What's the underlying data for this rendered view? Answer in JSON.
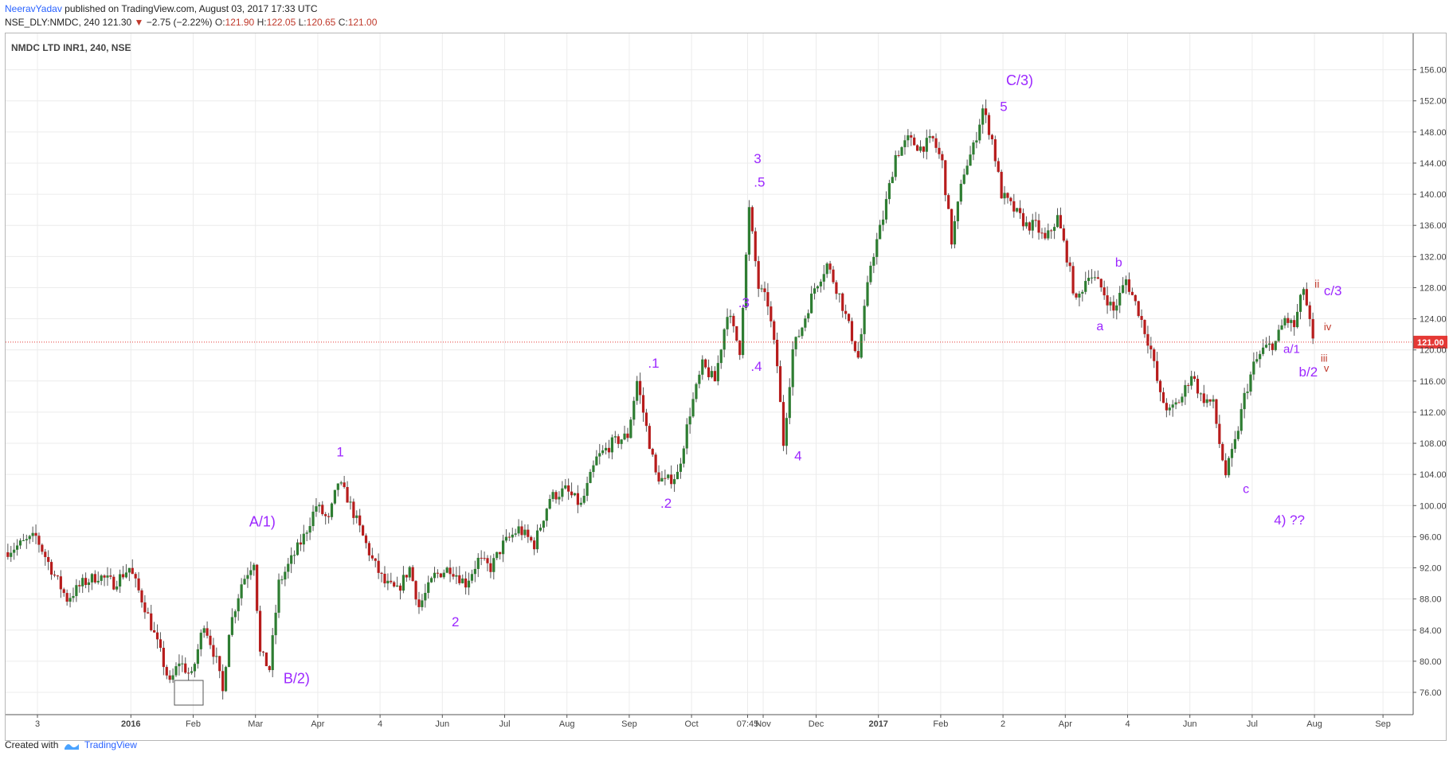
{
  "header": {
    "author": "NeeravYadav",
    "published": "published on TradingView.com, August 03, 2017 17:33 UTC",
    "symbol": "NSE_DLY:NMDC, 240",
    "last": "121.30",
    "arrow": "▼",
    "change": "−2.75 (−2.22%)",
    "o_label": "O:",
    "o": "121.90",
    "h_label": "H:",
    "h": "122.05",
    "l_label": "L:",
    "l": "120.65",
    "c_label": "C:",
    "c": "121.00"
  },
  "footer": {
    "created_with": "Created with",
    "brand": "TradingView"
  },
  "colors": {
    "up": "#2e7d32",
    "down": "#b71c1c",
    "wick": "#555555",
    "wave": "#9c27ff",
    "sub": "#c0392b",
    "price_line": "#e53935"
  },
  "chart_data": {
    "type": "candlestick",
    "title": "NMDC LTD INR1, 240, NSE",
    "ylim": [
      74,
      158
    ],
    "y_ticks": [
      76,
      80,
      84,
      88,
      92,
      96,
      100,
      104,
      108,
      112,
      116,
      120,
      124,
      128,
      132,
      136,
      140,
      144,
      148,
      152,
      156
    ],
    "y_tick_labels": [
      "76.00",
      "80.00",
      "84.00",
      "88.00",
      "92.00",
      "96.00",
      "100.00",
      "104.00",
      "108.00",
      "112.00",
      "116.00",
      "120.00",
      "124.00",
      "128.00",
      "132.00",
      "136.00",
      "140.00",
      "144.00",
      "148.00",
      "152.00",
      "156.00"
    ],
    "x_axis_labels": [
      "3",
      "2016",
      "Feb",
      "Mar",
      "Apr",
      "4",
      "Jun",
      "Jul",
      "Aug",
      "Sep",
      "Oct",
      "07:45",
      "Nov",
      "Dec",
      "2017",
      "Feb",
      "2",
      "Apr",
      "4",
      "Jun",
      "Jul",
      "Aug",
      "Sep"
    ],
    "x_axis_positions": [
      0.0,
      3.0,
      5.0,
      7.0,
      9.0,
      11.0,
      13.0,
      15.0,
      17.0,
      19.0,
      21.0,
      22.8,
      23.3,
      25.0,
      27.0,
      29.0,
      31.0,
      33.0,
      35.0,
      37.0,
      39.0,
      41.0,
      43.2
    ],
    "last_price": 121.0,
    "last_price_label": "121.00",
    "path": [
      [
        -1,
        94
      ],
      [
        0,
        96
      ],
      [
        0.6,
        91
      ],
      [
        1,
        88
      ],
      [
        1.5,
        90
      ],
      [
        2,
        91
      ],
      [
        2.5,
        90
      ],
      [
        3,
        92
      ],
      [
        3.5,
        87
      ],
      [
        4,
        81
      ],
      [
        4.3,
        77
      ],
      [
        4.6,
        80
      ],
      [
        5,
        78
      ],
      [
        5.4,
        85
      ],
      [
        5.8,
        80
      ],
      [
        6,
        76
      ],
      [
        6.2,
        84
      ],
      [
        6.6,
        90
      ],
      [
        7,
        93
      ],
      [
        7.2,
        81
      ],
      [
        7.5,
        79
      ],
      [
        7.8,
        90
      ],
      [
        8.2,
        93
      ],
      [
        8.6,
        96
      ],
      [
        9,
        100
      ],
      [
        9.4,
        98
      ],
      [
        9.7,
        103
      ],
      [
        10,
        101
      ],
      [
        10.4,
        97
      ],
      [
        10.8,
        93
      ],
      [
        11.2,
        90
      ],
      [
        11.6,
        89
      ],
      [
        12,
        92
      ],
      [
        12.3,
        87
      ],
      [
        12.8,
        91
      ],
      [
        13.3,
        92
      ],
      [
        13.8,
        90
      ],
      [
        14.2,
        93
      ],
      [
        14.6,
        92
      ],
      [
        15,
        95
      ],
      [
        15.5,
        97
      ],
      [
        16,
        95
      ],
      [
        16.5,
        101
      ],
      [
        17,
        102
      ],
      [
        17.5,
        100
      ],
      [
        18,
        106
      ],
      [
        18.5,
        108
      ],
      [
        19,
        109
      ],
      [
        19.3,
        116
      ],
      [
        19.6,
        110
      ],
      [
        19.9,
        104
      ],
      [
        20.2,
        103
      ],
      [
        20.6,
        104
      ],
      [
        21,
        112
      ],
      [
        21.4,
        118
      ],
      [
        21.8,
        116
      ],
      [
        22.2,
        125
      ],
      [
        22.6,
        120
      ],
      [
        22.9,
        138
      ],
      [
        23.2,
        128
      ],
      [
        23.5,
        126
      ],
      [
        23.8,
        118
      ],
      [
        24,
        108
      ],
      [
        24.3,
        120
      ],
      [
        24.6,
        123
      ],
      [
        25,
        128
      ],
      [
        25.4,
        131
      ],
      [
        25.8,
        127
      ],
      [
        26.1,
        123
      ],
      [
        26.4,
        119
      ],
      [
        26.8,
        131
      ],
      [
        27.2,
        137
      ],
      [
        27.6,
        145
      ],
      [
        28,
        147
      ],
      [
        28.4,
        146
      ],
      [
        28.8,
        147
      ],
      [
        29.1,
        144
      ],
      [
        29.4,
        134
      ],
      [
        29.8,
        143
      ],
      [
        30.1,
        146
      ],
      [
        30.4,
        151
      ],
      [
        30.7,
        147
      ],
      [
        31,
        140
      ],
      [
        31.4,
        138
      ],
      [
        31.8,
        136
      ],
      [
        32.1,
        136
      ],
      [
        32.4,
        134
      ],
      [
        32.8,
        137
      ],
      [
        33.1,
        132
      ],
      [
        33.4,
        126
      ],
      [
        33.8,
        130
      ],
      [
        34.2,
        128
      ],
      [
        34.6,
        125
      ],
      [
        35,
        129
      ],
      [
        35.4,
        125
      ],
      [
        35.8,
        120
      ],
      [
        36.1,
        114
      ],
      [
        36.4,
        112
      ],
      [
        36.8,
        114
      ],
      [
        37.1,
        117
      ],
      [
        37.4,
        114
      ],
      [
        37.8,
        113
      ],
      [
        38,
        108
      ],
      [
        38.2,
        104
      ],
      [
        38.5,
        108
      ],
      [
        38.8,
        114
      ],
      [
        39.1,
        118
      ],
      [
        39.4,
        120
      ],
      [
        39.8,
        121
      ],
      [
        40.1,
        124
      ],
      [
        40.4,
        123
      ],
      [
        40.7,
        128
      ],
      [
        41,
        121
      ]
    ],
    "annotations": [
      {
        "text": "A/1)",
        "x": 6.8,
        "y": 97.3,
        "size": 18,
        "color": "wave"
      },
      {
        "text": "B/2)",
        "x": 7.9,
        "y": 77.2,
        "size": 18,
        "color": "wave"
      },
      {
        "text": "1",
        "x": 9.6,
        "y": 106.3,
        "size": 17,
        "color": "wave"
      },
      {
        "text": "2",
        "x": 13.3,
        "y": 84.5,
        "size": 17,
        "color": "wave"
      },
      {
        "text": ".1",
        "x": 19.6,
        "y": 117.7,
        "size": 17,
        "color": "wave"
      },
      {
        "text": ".2",
        "x": 20.0,
        "y": 99.7,
        "size": 17,
        "color": "wave"
      },
      {
        "text": ".3",
        "x": 22.5,
        "y": 125.5,
        "size": 17,
        "color": "wave"
      },
      {
        "text": ".4",
        "x": 22.9,
        "y": 117.3,
        "size": 17,
        "color": "wave"
      },
      {
        "text": "3",
        "x": 23.0,
        "y": 144.0,
        "size": 17,
        "color": "wave"
      },
      {
        "text": ".5",
        "x": 23.0,
        "y": 141.0,
        "size": 17,
        "color": "wave"
      },
      {
        "text": "4",
        "x": 24.3,
        "y": 105.8,
        "size": 17,
        "color": "wave"
      },
      {
        "text": "C/3)",
        "x": 31.1,
        "y": 154.0,
        "size": 18,
        "color": "wave"
      },
      {
        "text": "5",
        "x": 30.9,
        "y": 150.7,
        "size": 17,
        "color": "wave"
      },
      {
        "text": "a",
        "x": 34.0,
        "y": 122.5,
        "size": 16,
        "color": "wave"
      },
      {
        "text": "b",
        "x": 34.6,
        "y": 130.7,
        "size": 16,
        "color": "wave"
      },
      {
        "text": "c",
        "x": 38.7,
        "y": 101.6,
        "size": 16,
        "color": "wave"
      },
      {
        "text": "4) ??",
        "x": 39.7,
        "y": 97.6,
        "size": 17,
        "color": "wave"
      },
      {
        "text": "b/2",
        "x": 40.5,
        "y": 116.6,
        "size": 17,
        "color": "wave"
      },
      {
        "text": "a/1",
        "x": 40.0,
        "y": 119.6,
        "size": 15,
        "color": "wave"
      },
      {
        "text": "c/3",
        "x": 41.3,
        "y": 127.0,
        "size": 17,
        "color": "wave"
      },
      {
        "text": "ii",
        "x": 41.0,
        "y": 128.0,
        "size": 14,
        "color": "sub"
      },
      {
        "text": "iv",
        "x": 41.3,
        "y": 122.5,
        "size": 13,
        "color": "sub"
      },
      {
        "text": "iii",
        "x": 41.2,
        "y": 118.5,
        "size": 13,
        "color": "sub"
      },
      {
        "text": "v",
        "x": 41.3,
        "y": 117.2,
        "size": 13,
        "color": "sub"
      }
    ]
  }
}
